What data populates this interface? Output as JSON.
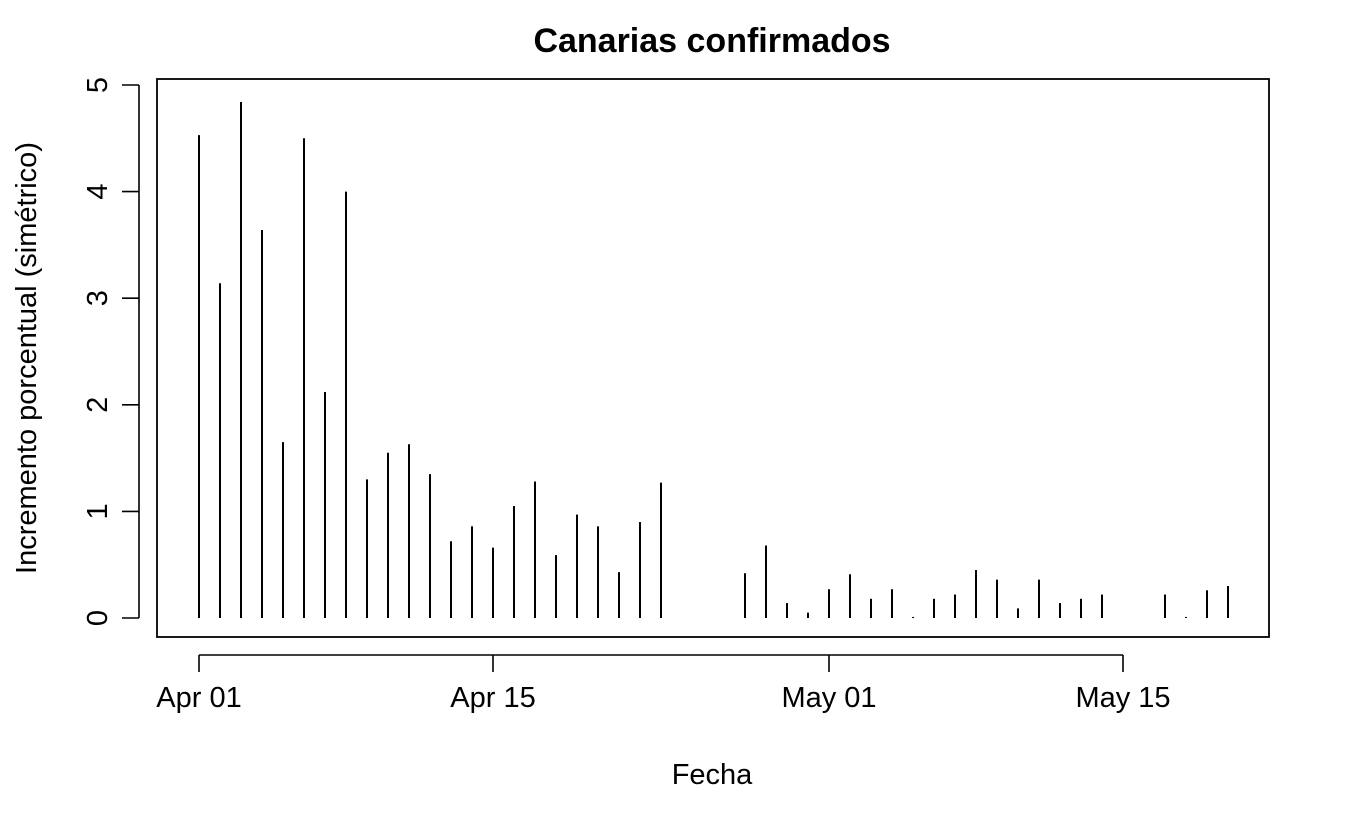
{
  "chart_data": {
    "type": "bar",
    "style": "vertical-spikes",
    "title": "Canarias confirmados",
    "xlabel": "Fecha",
    "ylabel": "Incremento porcentual (simétrico)",
    "ylim": [
      0,
      5
    ],
    "yticks": [
      0,
      1,
      2,
      3,
      4,
      5
    ],
    "xlim_day": [
      -2,
      51
    ],
    "xticks": [
      {
        "day": 0,
        "label": "Apr 01"
      },
      {
        "day": 14,
        "label": "Apr 15"
      },
      {
        "day": 30,
        "label": "May 01"
      },
      {
        "day": 44,
        "label": "May 15"
      }
    ],
    "series": [
      {
        "day": 0,
        "date": "Apr 01",
        "value": 4.53
      },
      {
        "day": 1,
        "date": "Apr 02",
        "value": 3.14
      },
      {
        "day": 2,
        "date": "Apr 03",
        "value": 4.84
      },
      {
        "day": 3,
        "date": "Apr 04",
        "value": 3.64
      },
      {
        "day": 4,
        "date": "Apr 05",
        "value": 1.65
      },
      {
        "day": 5,
        "date": "Apr 06",
        "value": 4.5
      },
      {
        "day": 6,
        "date": "Apr 07",
        "value": 2.12
      },
      {
        "day": 7,
        "date": "Apr 08",
        "value": 4.0
      },
      {
        "day": 8,
        "date": "Apr 09",
        "value": 1.3
      },
      {
        "day": 9,
        "date": "Apr 10",
        "value": 1.55
      },
      {
        "day": 10,
        "date": "Apr 11",
        "value": 1.63
      },
      {
        "day": 11,
        "date": "Apr 12",
        "value": 1.35
      },
      {
        "day": 12,
        "date": "Apr 13",
        "value": 0.72
      },
      {
        "day": 13,
        "date": "Apr 14",
        "value": 0.86
      },
      {
        "day": 14,
        "date": "Apr 15",
        "value": 0.66
      },
      {
        "day": 15,
        "date": "Apr 16",
        "value": 1.05
      },
      {
        "day": 16,
        "date": "Apr 17",
        "value": 1.28
      },
      {
        "day": 17,
        "date": "Apr 18",
        "value": 0.59
      },
      {
        "day": 18,
        "date": "Apr 19",
        "value": 0.97
      },
      {
        "day": 19,
        "date": "Apr 20",
        "value": 0.86
      },
      {
        "day": 20,
        "date": "Apr 21",
        "value": 0.43
      },
      {
        "day": 21,
        "date": "Apr 22",
        "value": 0.9
      },
      {
        "day": 22,
        "date": "Apr 23",
        "value": 1.27
      },
      {
        "day": 26,
        "date": "Apr 27",
        "value": 0.42
      },
      {
        "day": 27,
        "date": "Apr 28",
        "value": 0.68
      },
      {
        "day": 28,
        "date": "Apr 29",
        "value": 0.14
      },
      {
        "day": 29,
        "date": "Apr 30",
        "value": 0.05
      },
      {
        "day": 30,
        "date": "May 01",
        "value": 0.27
      },
      {
        "day": 31,
        "date": "May 02",
        "value": 0.41
      },
      {
        "day": 32,
        "date": "May 03",
        "value": 0.18
      },
      {
        "day": 33,
        "date": "May 04",
        "value": 0.27
      },
      {
        "day": 34,
        "date": "May 05",
        "value": 0.01
      },
      {
        "day": 35,
        "date": "May 06",
        "value": 0.18
      },
      {
        "day": 36,
        "date": "May 07",
        "value": 0.22
      },
      {
        "day": 37,
        "date": "May 08",
        "value": 0.45
      },
      {
        "day": 38,
        "date": "May 09",
        "value": 0.36
      },
      {
        "day": 39,
        "date": "May 10",
        "value": 0.09
      },
      {
        "day": 40,
        "date": "May 11",
        "value": 0.36
      },
      {
        "day": 41,
        "date": "May 12",
        "value": 0.14
      },
      {
        "day": 42,
        "date": "May 13",
        "value": 0.18
      },
      {
        "day": 43,
        "date": "May 14",
        "value": 0.22
      },
      {
        "day": 46,
        "date": "May 17",
        "value": 0.22
      },
      {
        "day": 47,
        "date": "May 18",
        "value": 0.01
      },
      {
        "day": 48,
        "date": "May 19",
        "value": 0.26
      },
      {
        "day": 49,
        "date": "May 20",
        "value": 0.3
      }
    ]
  }
}
